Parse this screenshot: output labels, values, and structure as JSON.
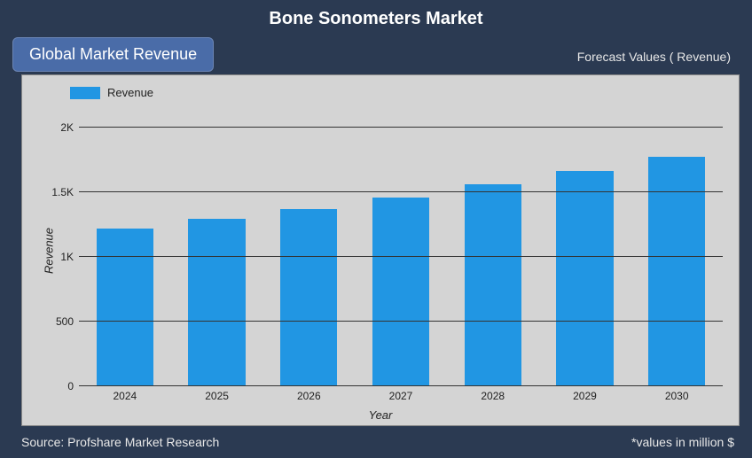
{
  "title": "Bone Sonometers Market",
  "badge": "Global Market Revenue",
  "forecast_label": "Forecast Values ( Revenue)",
  "source": "Source: Profshare Market Research",
  "values_note": "*values in million $",
  "chart": {
    "type": "bar",
    "legend_label": "Revenue",
    "legend_color": "#2196e3",
    "bar_color": "#2196e3",
    "background_color": "#d4d4d4",
    "grid_color": "#333333",
    "panel_bg": "#2b3a52",
    "badge_bg": "#4a6ca8",
    "text_color": "#222222",
    "title_color": "#ffffff",
    "y_label": "Revenue",
    "x_label": "Year",
    "y_label_fontstyle": "italic",
    "x_label_fontstyle": "italic",
    "title_fontsize": 20,
    "label_fontsize": 13,
    "tick_fontsize": 12,
    "bar_width": 0.62,
    "ylim": [
      0,
      2100
    ],
    "yticks": [
      {
        "value": 0,
        "label": "0"
      },
      {
        "value": 500,
        "label": "500"
      },
      {
        "value": 1000,
        "label": "1K"
      },
      {
        "value": 1500,
        "label": "1.5K"
      },
      {
        "value": 2000,
        "label": "2K"
      }
    ],
    "categories": [
      "2024",
      "2025",
      "2026",
      "2027",
      "2028",
      "2029",
      "2030"
    ],
    "values": [
      1220,
      1290,
      1370,
      1460,
      1560,
      1660,
      1770
    ]
  }
}
